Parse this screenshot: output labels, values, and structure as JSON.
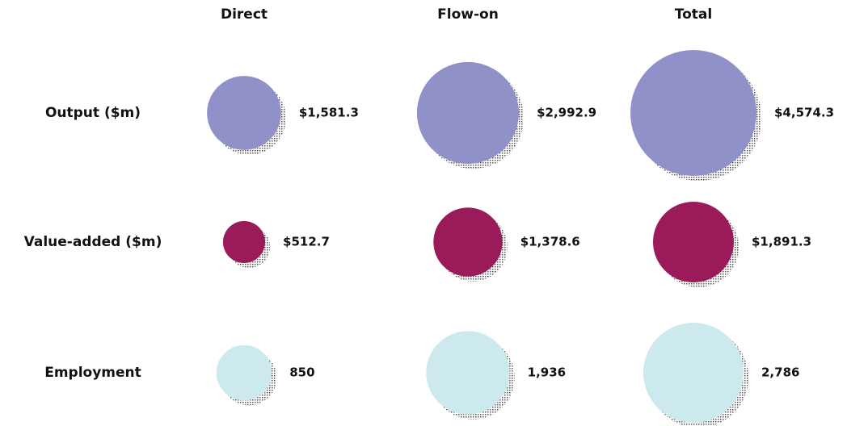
{
  "chart_data": {
    "type": "bubble",
    "categories": [
      "Direct",
      "Flow-on",
      "Total"
    ],
    "series": [
      {
        "name": "Output ($m)",
        "color": "#8f91c8",
        "values": [
          1581.3,
          2992.9,
          4574.3
        ],
        "value_labels": [
          "$1,581.3",
          "$2,992.9",
          "$4,574.3"
        ]
      },
      {
        "name": "Value-added ($m)",
        "color": "#9b1b5a",
        "values": [
          512.7,
          1378.6,
          1891.3
        ],
        "value_labels": [
          "$512.7",
          "$1,378.6",
          "$1,891.3"
        ]
      },
      {
        "name": "Employment",
        "color": "#cce9ee",
        "values": [
          850,
          1936,
          2786
        ],
        "value_labels": [
          "850",
          "1,936",
          "2,786"
        ]
      }
    ]
  }
}
